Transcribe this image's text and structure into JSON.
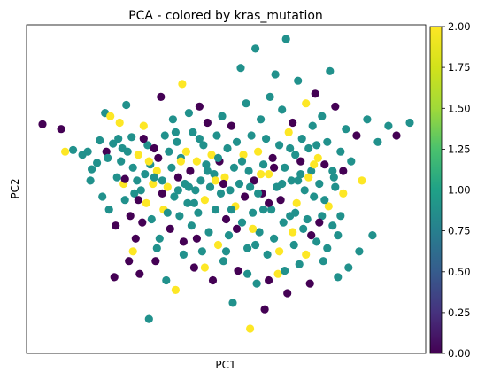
{
  "chart_data": {
    "type": "scatter",
    "title": "PCA - colored by kras_mutation",
    "xlabel": "PC1",
    "ylabel": "PC2",
    "xticks": false,
    "yticks": false,
    "grid": false,
    "color_scale": {
      "colormap": "viridis",
      "range": [
        0.0,
        2.0
      ],
      "tick_labels": [
        "0.00",
        "0.25",
        "0.50",
        "0.75",
        "1.00",
        "1.25",
        "1.50",
        "1.75",
        "2.00"
      ],
      "colors": {
        "0": "#440154",
        "1": "#21918c",
        "2": "#fde725"
      }
    },
    "points": [
      [
        -4.9,
        2.05,
        0
      ],
      [
        -4.2,
        1.9,
        0
      ],
      [
        -4.05,
        1.2,
        2
      ],
      [
        -3.75,
        1.25,
        1
      ],
      [
        -3.4,
        1.1,
        1
      ],
      [
        -3.2,
        1.2,
        1
      ],
      [
        -3.1,
        0.3,
        1
      ],
      [
        -3.05,
        0.65,
        1
      ],
      [
        -2.85,
        0.85,
        1
      ],
      [
        -2.75,
        1.55,
        1
      ],
      [
        -2.65,
        -0.2,
        1
      ],
      [
        -2.55,
        2.4,
        1
      ],
      [
        -2.5,
        1.2,
        0
      ],
      [
        -2.45,
        1.0,
        1
      ],
      [
        -2.35,
        2.3,
        2
      ],
      [
        -2.25,
        1.45,
        1
      ],
      [
        -2.2,
        -2.7,
        0
      ],
      [
        -2.15,
        -1.1,
        0
      ],
      [
        -2.1,
        0.4,
        1
      ],
      [
        -2.05,
        1.6,
        1
      ],
      [
        -2.0,
        2.1,
        2
      ],
      [
        -1.95,
        0.9,
        1
      ],
      [
        -1.9,
        1.3,
        1
      ],
      [
        -1.85,
        0.2,
        2
      ],
      [
        -1.8,
        0.35,
        0
      ],
      [
        -1.75,
        2.65,
        1
      ],
      [
        -1.7,
        1.2,
        1
      ],
      [
        -1.65,
        -2.2,
        0
      ],
      [
        -1.6,
        -0.8,
        0
      ],
      [
        -1.55,
        1.65,
        1
      ],
      [
        -1.5,
        0.7,
        1
      ],
      [
        -1.45,
        -0.1,
        1
      ],
      [
        -1.4,
        -1.5,
        0
      ],
      [
        -1.35,
        0.3,
        1
      ],
      [
        -1.3,
        1.1,
        2
      ],
      [
        -1.25,
        -2.6,
        0
      ],
      [
        -1.2,
        0.0,
        1
      ],
      [
        -1.15,
        -1.0,
        0
      ],
      [
        -1.1,
        2.0,
        2
      ],
      [
        -1.05,
        0.5,
        1
      ],
      [
        -1.0,
        -0.4,
        2
      ],
      [
        -0.95,
        1.4,
        1
      ],
      [
        -0.9,
        -4.0,
        1
      ],
      [
        -0.85,
        0.8,
        1
      ],
      [
        -0.8,
        -0.9,
        1
      ],
      [
        -0.75,
        0.2,
        2
      ],
      [
        -0.7,
        1.3,
        0
      ],
      [
        -0.65,
        -2.2,
        0
      ],
      [
        -0.6,
        0.6,
        2
      ],
      [
        -0.55,
        1.0,
        0
      ],
      [
        -0.5,
        -1.5,
        1
      ],
      [
        -0.45,
        2.9,
        0
      ],
      [
        -0.4,
        0.3,
        1
      ],
      [
        -0.35,
        -0.6,
        2
      ],
      [
        -0.3,
        1.7,
        1
      ],
      [
        -0.25,
        -2.8,
        1
      ],
      [
        -0.2,
        0.1,
        2
      ],
      [
        -0.15,
        1.2,
        1
      ],
      [
        -0.1,
        -1.2,
        0
      ],
      [
        -0.05,
        0.7,
        1
      ],
      [
        0.0,
        2.2,
        1
      ],
      [
        0.05,
        -0.2,
        1
      ],
      [
        0.1,
        -3.1,
        2
      ],
      [
        0.15,
        1.5,
        1
      ],
      [
        0.2,
        0.4,
        0
      ],
      [
        0.25,
        -0.8,
        1
      ],
      [
        0.3,
        1.0,
        1
      ],
      [
        0.35,
        3.3,
        2
      ],
      [
        0.4,
        -1.6,
        0
      ],
      [
        0.45,
        0.2,
        1
      ],
      [
        0.5,
        1.2,
        2
      ],
      [
        0.55,
        -0.4,
        1
      ],
      [
        0.6,
        2.4,
        1
      ],
      [
        0.65,
        0.6,
        0
      ],
      [
        0.7,
        -1.1,
        1
      ],
      [
        0.75,
        1.8,
        1
      ],
      [
        0.8,
        -2.4,
        0
      ],
      [
        0.85,
        0.0,
        1
      ],
      [
        0.9,
        0.9,
        2
      ],
      [
        0.95,
        -0.7,
        1
      ],
      [
        1.0,
        2.6,
        0
      ],
      [
        1.05,
        0.3,
        1
      ],
      [
        1.1,
        -1.9,
        1
      ],
      [
        1.15,
        1.4,
        1
      ],
      [
        1.2,
        -0.3,
        2
      ],
      [
        1.25,
        0.8,
        1
      ],
      [
        1.3,
        2.1,
        0
      ],
      [
        1.35,
        -1.3,
        1
      ],
      [
        1.4,
        0.1,
        1
      ],
      [
        1.45,
        1.1,
        2
      ],
      [
        1.5,
        -2.8,
        0
      ],
      [
        1.55,
        0.5,
        1
      ],
      [
        1.6,
        -0.6,
        1
      ],
      [
        1.65,
        1.7,
        1
      ],
      [
        1.7,
        -1.7,
        2
      ],
      [
        1.75,
        0.9,
        0
      ],
      [
        1.8,
        -0.1,
        1
      ],
      [
        1.85,
        2.3,
        1
      ],
      [
        1.9,
        -2.2,
        1
      ],
      [
        1.95,
        0.4,
        2
      ],
      [
        2.0,
        -0.9,
        0
      ],
      [
        2.05,
        1.3,
        1
      ],
      [
        2.1,
        -1.4,
        1
      ],
      [
        2.15,
        0.0,
        1
      ],
      [
        2.2,
        2.0,
        0
      ],
      [
        2.25,
        -3.5,
        1
      ],
      [
        2.3,
        0.7,
        1
      ],
      [
        2.35,
        -0.5,
        2
      ],
      [
        2.4,
        1.5,
        1
      ],
      [
        2.45,
        -2.5,
        0
      ],
      [
        2.5,
        0.2,
        1
      ],
      [
        2.55,
        3.8,
        1
      ],
      [
        2.6,
        -1.0,
        1
      ],
      [
        2.65,
        1.1,
        2
      ],
      [
        2.7,
        -0.2,
        0
      ],
      [
        2.75,
        2.7,
        1
      ],
      [
        2.8,
        -1.8,
        1
      ],
      [
        2.85,
        0.6,
        1
      ],
      [
        2.9,
        -4.3,
        2
      ],
      [
        2.95,
        1.7,
        1
      ],
      [
        3.0,
        -0.7,
        1
      ],
      [
        3.05,
        0.3,
        0
      ],
      [
        3.1,
        4.4,
        1
      ],
      [
        3.15,
        -2.9,
        1
      ],
      [
        3.2,
        1.2,
        2
      ],
      [
        3.25,
        -1.3,
        1
      ],
      [
        3.3,
        2.2,
        1
      ],
      [
        3.35,
        -0.1,
        0
      ],
      [
        3.4,
        0.8,
        1
      ],
      [
        3.45,
        -3.7,
        0
      ],
      [
        3.5,
        1.6,
        1
      ],
      [
        3.55,
        -2.0,
        1
      ],
      [
        3.6,
        0.5,
        2
      ],
      [
        3.65,
        2.9,
        1
      ],
      [
        3.7,
        -0.6,
        1
      ],
      [
        3.75,
        1.0,
        0
      ],
      [
        3.8,
        -1.5,
        1
      ],
      [
        3.85,
        3.6,
        1
      ],
      [
        3.9,
        0.1,
        1
      ],
      [
        3.95,
        -2.6,
        2
      ],
      [
        4.0,
        1.4,
        1
      ],
      [
        4.05,
        -0.3,
        0
      ],
      [
        4.1,
        2.5,
        1
      ],
      [
        4.15,
        -1.0,
        1
      ],
      [
        4.2,
        0.7,
        1
      ],
      [
        4.25,
        4.7,
        1
      ],
      [
        4.3,
        -3.2,
        0
      ],
      [
        4.35,
        1.8,
        2
      ],
      [
        4.4,
        -0.8,
        1
      ],
      [
        4.45,
        0.3,
        1
      ],
      [
        4.5,
        2.1,
        0
      ],
      [
        4.55,
        -1.7,
        1
      ],
      [
        4.6,
        1.1,
        1
      ],
      [
        4.65,
        -0.4,
        2
      ],
      [
        4.7,
        3.4,
        1
      ],
      [
        4.75,
        -2.3,
        1
      ],
      [
        4.8,
        0.9,
        0
      ],
      [
        4.85,
        1.6,
        1
      ],
      [
        4.9,
        -1.2,
        1
      ],
      [
        4.95,
        0.0,
        1
      ],
      [
        5.0,
        2.7,
        2
      ],
      [
        5.05,
        -0.9,
        1
      ],
      [
        5.1,
        1.3,
        1
      ],
      [
        5.15,
        -2.9,
        0
      ],
      [
        5.2,
        0.6,
        1
      ],
      [
        5.25,
        2.0,
        1
      ],
      [
        5.3,
        -0.2,
        1
      ],
      [
        5.35,
        3.0,
        0
      ],
      [
        5.4,
        -1.6,
        1
      ],
      [
        5.45,
        1.0,
        2
      ],
      [
        5.5,
        0.2,
        1
      ],
      [
        5.6,
        2.3,
        1
      ],
      [
        5.65,
        -2.2,
        1
      ],
      [
        5.7,
        0.8,
        0
      ],
      [
        5.8,
        1.5,
        1
      ],
      [
        5.85,
        -0.5,
        2
      ],
      [
        5.9,
        3.7,
        1
      ],
      [
        6.0,
        -1.1,
        1
      ],
      [
        6.05,
        0.4,
        1
      ],
      [
        6.1,
        2.6,
        0
      ],
      [
        6.2,
        -2.7,
        1
      ],
      [
        6.3,
        1.2,
        1
      ],
      [
        6.4,
        -0.1,
        2
      ],
      [
        6.5,
        1.9,
        1
      ],
      [
        6.6,
        -2.4,
        1
      ],
      [
        6.7,
        0.9,
        1
      ],
      [
        6.9,
        1.7,
        0
      ],
      [
        7.0,
        -1.9,
        1
      ],
      [
        7.1,
        0.3,
        2
      ],
      [
        7.3,
        2.2,
        1
      ],
      [
        7.5,
        -1.4,
        1
      ],
      [
        7.7,
        1.5,
        1
      ],
      [
        8.1,
        2.0,
        1
      ],
      [
        8.4,
        1.7,
        0
      ],
      [
        8.9,
        2.1,
        1
      ],
      [
        -1.3,
        -0.3,
        0
      ],
      [
        -0.7,
        0.4,
        1
      ],
      [
        -0.2,
        -0.7,
        1
      ],
      [
        0.3,
        0.9,
        2
      ],
      [
        0.8,
        -0.4,
        1
      ],
      [
        1.3,
        0.6,
        1
      ],
      [
        1.7,
        1.0,
        1
      ],
      [
        2.6,
        0.9,
        1
      ],
      [
        3.0,
        -1.2,
        2
      ],
      [
        3.6,
        -0.4,
        0
      ],
      [
        4.1,
        0.2,
        1
      ],
      [
        4.6,
        -0.7,
        1
      ],
      [
        5.1,
        0.4,
        2
      ],
      [
        5.6,
        -0.8,
        1
      ],
      [
        6.1,
        0.1,
        1
      ],
      [
        -1.8,
        -0.3,
        1
      ],
      [
        -0.4,
        -0.1,
        0
      ],
      [
        0.6,
        0.1,
        1
      ],
      [
        1.9,
        0.2,
        0
      ],
      [
        2.2,
        -0.6,
        1
      ],
      [
        3.4,
        -0.6,
        1
      ],
      [
        4.0,
        -1.9,
        2
      ],
      [
        4.7,
        0.3,
        1
      ],
      [
        5.2,
        -1.4,
        0
      ],
      [
        5.7,
        -0.3,
        1
      ],
      [
        6.3,
        -0.8,
        1
      ],
      [
        -2.4,
        -0.6,
        1
      ],
      [
        -1.1,
        1.6,
        0
      ],
      [
        0.1,
        1.8,
        1
      ],
      [
        1.0,
        1.6,
        1
      ],
      [
        2.4,
        -1.2,
        0
      ],
      [
        3.2,
        -0.1,
        1
      ],
      [
        3.8,
        0.7,
        0
      ],
      [
        4.4,
        1.3,
        1
      ],
      [
        5.4,
        1.4,
        1
      ],
      [
        6.4,
        0.6,
        0
      ],
      [
        -0.6,
        -1.8,
        1
      ],
      [
        0.4,
        -2.0,
        1
      ],
      [
        1.2,
        -2.4,
        2
      ],
      [
        2.8,
        -2.6,
        1
      ],
      [
        3.6,
        -2.8,
        0
      ],
      [
        4.2,
        -2.5,
        1
      ],
      [
        5.0,
        -2.0,
        2
      ],
      [
        5.8,
        -1.8,
        1
      ],
      [
        -1.5,
        -1.9,
        2
      ],
      [
        0.9,
        -1.5,
        0
      ],
      [
        2.0,
        -1.9,
        1
      ],
      [
        3.1,
        -1.7,
        1
      ],
      [
        4.5,
        -1.3,
        2
      ],
      [
        5.5,
        -1.0,
        0
      ],
      [
        6.2,
        -1.4,
        1
      ],
      [
        -0.9,
        0.9,
        2
      ],
      [
        0.2,
        0.0,
        1
      ],
      [
        1.6,
        0.3,
        2
      ],
      [
        2.9,
        0.1,
        1
      ],
      [
        3.3,
        0.5,
        2
      ],
      [
        4.8,
        0.5,
        1
      ],
      [
        5.3,
        0.8,
        2
      ],
      [
        6.0,
        0.6,
        1
      ]
    ]
  }
}
